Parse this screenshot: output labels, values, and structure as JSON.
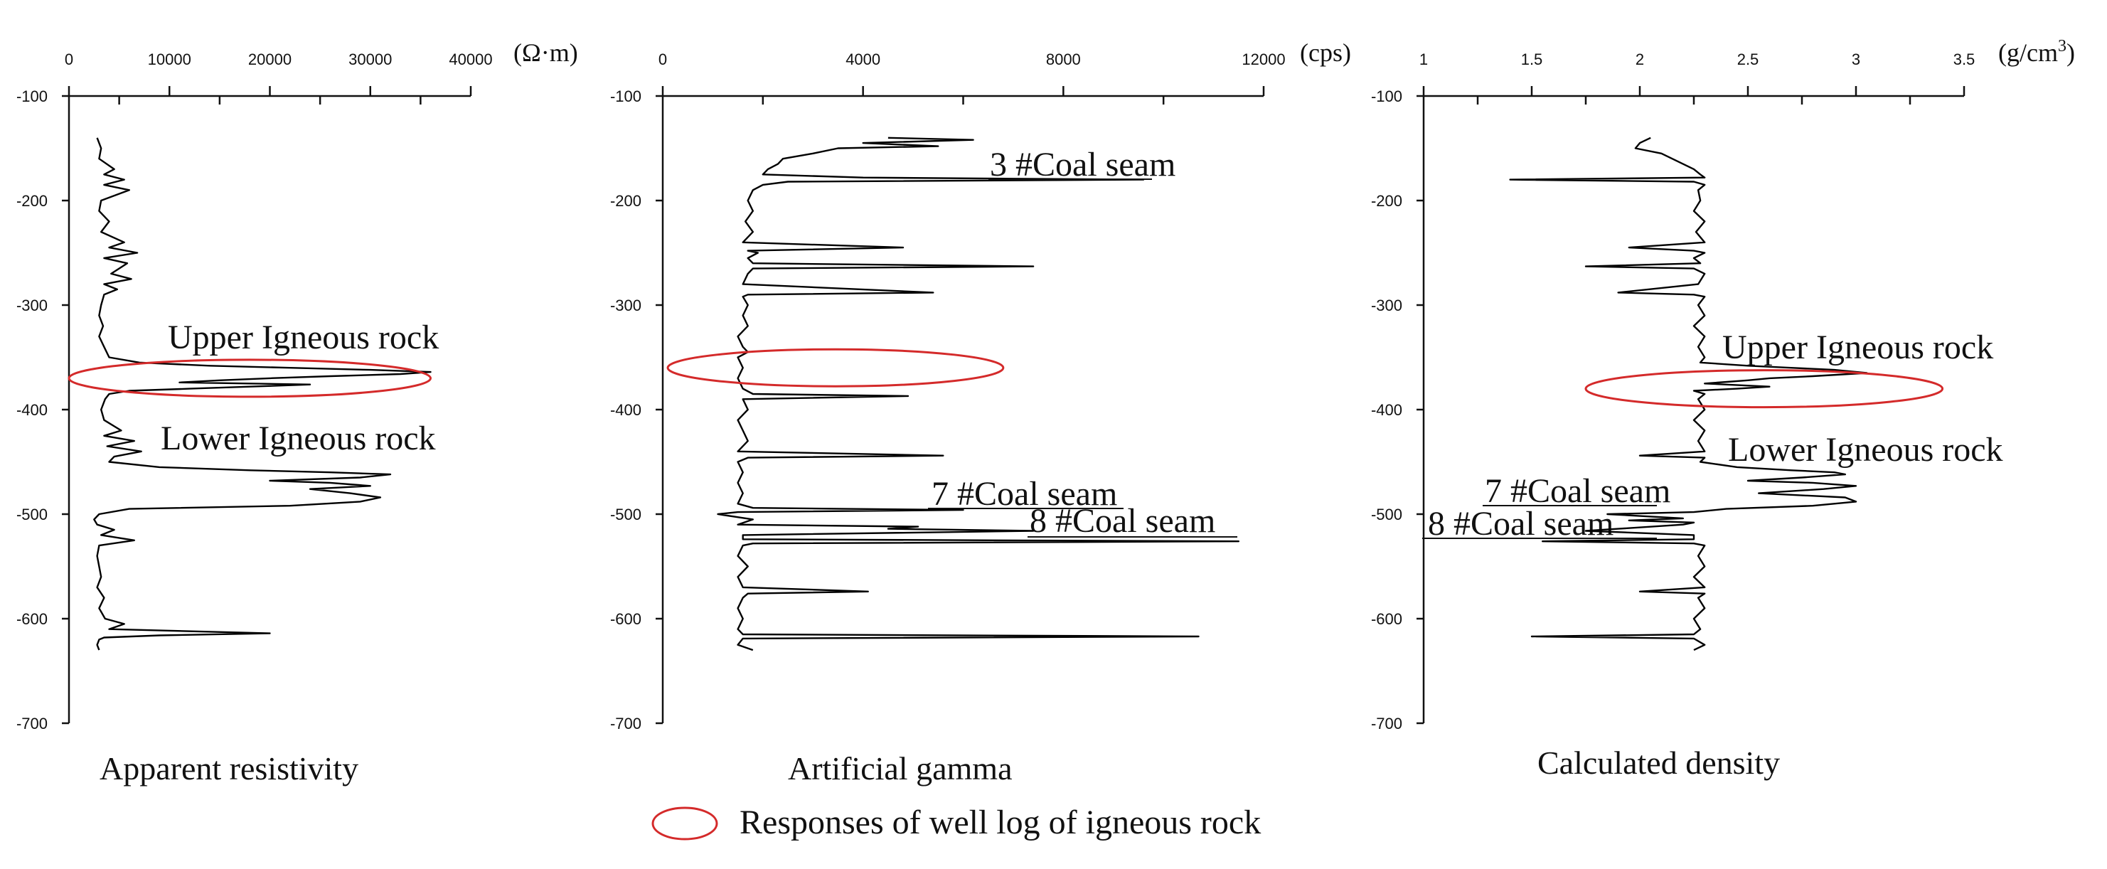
{
  "chart_data": [
    {
      "type": "line",
      "title": "Apparent resistivity",
      "x_unit": "(Ω·m)",
      "xlim": [
        0,
        40000
      ],
      "x_ticks": [
        "0",
        "10000",
        "20000",
        "30000",
        "40000"
      ],
      "ylim": [
        -700,
        -100
      ],
      "y_ticks": [
        "-100",
        "-200",
        "-300",
        "-400",
        "-500",
        "-600",
        "-700"
      ],
      "grid": false,
      "annotations": [
        "Upper Igneous rock",
        "Lower Igneous rock"
      ],
      "highlight": {
        "depth_center": -370,
        "x_range": [
          0,
          36000
        ]
      },
      "series": [
        {
          "depth": [
            -140,
            -150,
            -160,
            -170,
            -175,
            -180,
            -185,
            -190,
            -200,
            -210,
            -220,
            -230,
            -240,
            -245,
            -250,
            -255,
            -260,
            -270,
            -275,
            -280,
            -285,
            -290,
            -300,
            -310,
            -320,
            -330,
            -340,
            -350,
            -355,
            -358,
            -360,
            -362,
            -364,
            -366,
            -368,
            -370,
            -372,
            -374,
            -376,
            -378,
            -380,
            -382,
            -385,
            -390,
            -400,
            -410,
            -420,
            -425,
            -430,
            -435,
            -440,
            -445,
            -450,
            -455,
            -458,
            -460,
            -462,
            -465,
            -468,
            -470,
            -473,
            -476,
            -480,
            -484,
            -488,
            -492,
            -495,
            -500,
            -505,
            -510,
            -515,
            -520,
            -525,
            -530,
            -540,
            -550,
            -560,
            -570,
            -580,
            -590,
            -600,
            -605,
            -610,
            -614,
            -616,
            -618,
            -620,
            -625,
            -630
          ],
          "value": [
            2800,
            3200,
            3000,
            4500,
            3500,
            5500,
            3500,
            6000,
            3200,
            3000,
            4000,
            3200,
            5500,
            4000,
            6800,
            3500,
            5800,
            4200,
            6200,
            3500,
            4800,
            3500,
            3200,
            3000,
            3400,
            3000,
            3500,
            4000,
            7000,
            14000,
            22000,
            30000,
            36000,
            33000,
            26000,
            20000,
            15000,
            11000,
            24000,
            18000,
            12000,
            6000,
            4000,
            3600,
            3200,
            3500,
            5200,
            3500,
            6500,
            3800,
            7200,
            4500,
            4000,
            9000,
            18000,
            26000,
            32000,
            29000,
            20000,
            26000,
            30000,
            24000,
            28000,
            31000,
            29000,
            22000,
            6000,
            3000,
            2500,
            2800,
            4500,
            3200,
            6500,
            3000,
            2800,
            3000,
            3200,
            2800,
            3500,
            3000,
            3600,
            5500,
            4000,
            20000,
            9000,
            3500,
            3000,
            2800,
            3000
          ]
        }
      ]
    },
    {
      "type": "line",
      "title": "Artificial gamma",
      "x_unit": "(cps)",
      "xlim": [
        0,
        12000
      ],
      "x_ticks": [
        "0",
        "4000",
        "8000",
        "12000"
      ],
      "ylim": [
        -700,
        -100
      ],
      "y_ticks": [
        "-100",
        "-200",
        "-300",
        "-400",
        "-500",
        "-600",
        "-700"
      ],
      "grid": false,
      "annotations": [
        "3 #Coal seam",
        "7 #Coal seam",
        "8 #Coal seam"
      ],
      "highlight": {
        "depth_center": -360,
        "x_range": [
          100,
          6800
        ]
      },
      "series": [
        {
          "depth": [
            -140,
            -142,
            -145,
            -148,
            -150,
            -155,
            -160,
            -165,
            -170,
            -175,
            -178,
            -180,
            -182,
            -185,
            -190,
            -200,
            -210,
            -220,
            -230,
            -240,
            -245,
            -248,
            -250,
            -255,
            -260,
            -263,
            -265,
            -270,
            -280,
            -288,
            -290,
            -292,
            -300,
            -310,
            -320,
            -330,
            -340,
            -345,
            -350,
            -360,
            -370,
            -380,
            -385,
            -387,
            -390,
            -400,
            -410,
            -420,
            -430,
            -440,
            -444,
            -446,
            -450,
            -460,
            -470,
            -480,
            -490,
            -494,
            -496,
            -498,
            -500,
            -505,
            -510,
            -512,
            -514,
            -516,
            -520,
            -524,
            -526,
            -528,
            -530,
            -540,
            -550,
            -560,
            -570,
            -574,
            -576,
            -580,
            -590,
            -600,
            -610,
            -615,
            -617,
            -619,
            -625,
            -630
          ],
          "value": [
            4500,
            6200,
            4000,
            5500,
            3500,
            3000,
            2400,
            2300,
            2100,
            2000,
            4000,
            9600,
            2500,
            2000,
            1800,
            1700,
            1800,
            1650,
            1800,
            1600,
            4800,
            1700,
            1900,
            1700,
            1800,
            7400,
            1800,
            1700,
            1600,
            5400,
            1700,
            1600,
            1700,
            1600,
            1700,
            1500,
            1600,
            1700,
            1500,
            1600,
            1500,
            1600,
            1800,
            4900,
            1600,
            1700,
            1500,
            1600,
            1700,
            1500,
            5600,
            1700,
            1500,
            1600,
            1500,
            1600,
            1500,
            1800,
            6000,
            1500,
            1100,
            1800,
            1500,
            5100,
            4500,
            7400,
            1600,
            1600,
            11500,
            1800,
            1600,
            1500,
            1700,
            1500,
            1600,
            4100,
            1700,
            1600,
            1500,
            1600,
            1500,
            1600,
            10700,
            1600,
            1500,
            1800
          ]
        }
      ]
    },
    {
      "type": "line",
      "title": "Calculated density",
      "x_unit": "(g/cm3)",
      "xlim": [
        1,
        3.5
      ],
      "x_ticks": [
        "1",
        "1.5",
        "2",
        "2.5",
        "3",
        "3.5"
      ],
      "ylim": [
        -700,
        -100
      ],
      "y_ticks": [
        "-100",
        "-200",
        "-300",
        "-400",
        "-500",
        "-600",
        "-700"
      ],
      "grid": false,
      "annotations": [
        "Upper Igneous rock",
        "Lower Igneous rock",
        "7 #Coal seam",
        "8 #Coal seam"
      ],
      "highlight": {
        "depth_center": -380,
        "x_range": [
          1.75,
          3.4
        ]
      },
      "series": [
        {
          "depth": [
            -140,
            -145,
            -150,
            -155,
            -160,
            -165,
            -170,
            -175,
            -178,
            -180,
            -182,
            -185,
            -190,
            -200,
            -210,
            -220,
            -230,
            -240,
            -245,
            -248,
            -250,
            -255,
            -260,
            -263,
            -265,
            -270,
            -280,
            -288,
            -290,
            -292,
            -300,
            -310,
            -320,
            -330,
            -340,
            -350,
            -355,
            -358,
            -360,
            -362,
            -365,
            -368,
            -370,
            -372,
            -375,
            -378,
            -380,
            -382,
            -385,
            -390,
            -400,
            -410,
            -420,
            -430,
            -440,
            -444,
            -446,
            -450,
            -455,
            -458,
            -460,
            -462,
            -465,
            -468,
            -470,
            -473,
            -476,
            -480,
            -484,
            -488,
            -492,
            -495,
            -498,
            -500,
            -504,
            -506,
            -508,
            -510,
            -514,
            -516,
            -520,
            -524,
            -526,
            -528,
            -530,
            -540,
            -550,
            -560,
            -570,
            -574,
            -576,
            -580,
            -590,
            -600,
            -610,
            -615,
            -617,
            -619,
            -625,
            -630
          ],
          "value": [
            2.05,
            2.0,
            1.98,
            2.1,
            2.15,
            2.2,
            2.25,
            2.28,
            2.3,
            1.4,
            2.25,
            2.3,
            2.27,
            2.28,
            2.25,
            2.3,
            2.26,
            2.3,
            1.95,
            2.25,
            2.3,
            2.25,
            2.28,
            1.75,
            2.25,
            2.3,
            2.27,
            1.9,
            2.25,
            2.3,
            2.27,
            2.3,
            2.25,
            2.3,
            2.27,
            2.3,
            2.28,
            2.5,
            2.7,
            2.9,
            3.05,
            2.8,
            2.6,
            2.5,
            2.3,
            2.6,
            2.45,
            2.25,
            2.3,
            2.27,
            2.3,
            2.25,
            2.3,
            2.27,
            2.3,
            2.0,
            2.3,
            2.28,
            2.45,
            2.7,
            2.9,
            2.95,
            2.75,
            2.5,
            2.8,
            3.0,
            2.85,
            2.55,
            2.95,
            3.0,
            2.8,
            2.4,
            2.25,
            1.85,
            2.2,
            1.95,
            2.25,
            2.2,
            1.9,
            1.75,
            2.25,
            2.25,
            1.55,
            2.25,
            2.3,
            2.27,
            2.3,
            2.25,
            2.3,
            2.0,
            2.3,
            2.27,
            2.3,
            2.25,
            2.28,
            2.25,
            1.5,
            2.25,
            2.3,
            2.25
          ]
        }
      ]
    }
  ],
  "legend": {
    "label": "Responses of well log of igneous rock",
    "color": "#d42a2a"
  }
}
